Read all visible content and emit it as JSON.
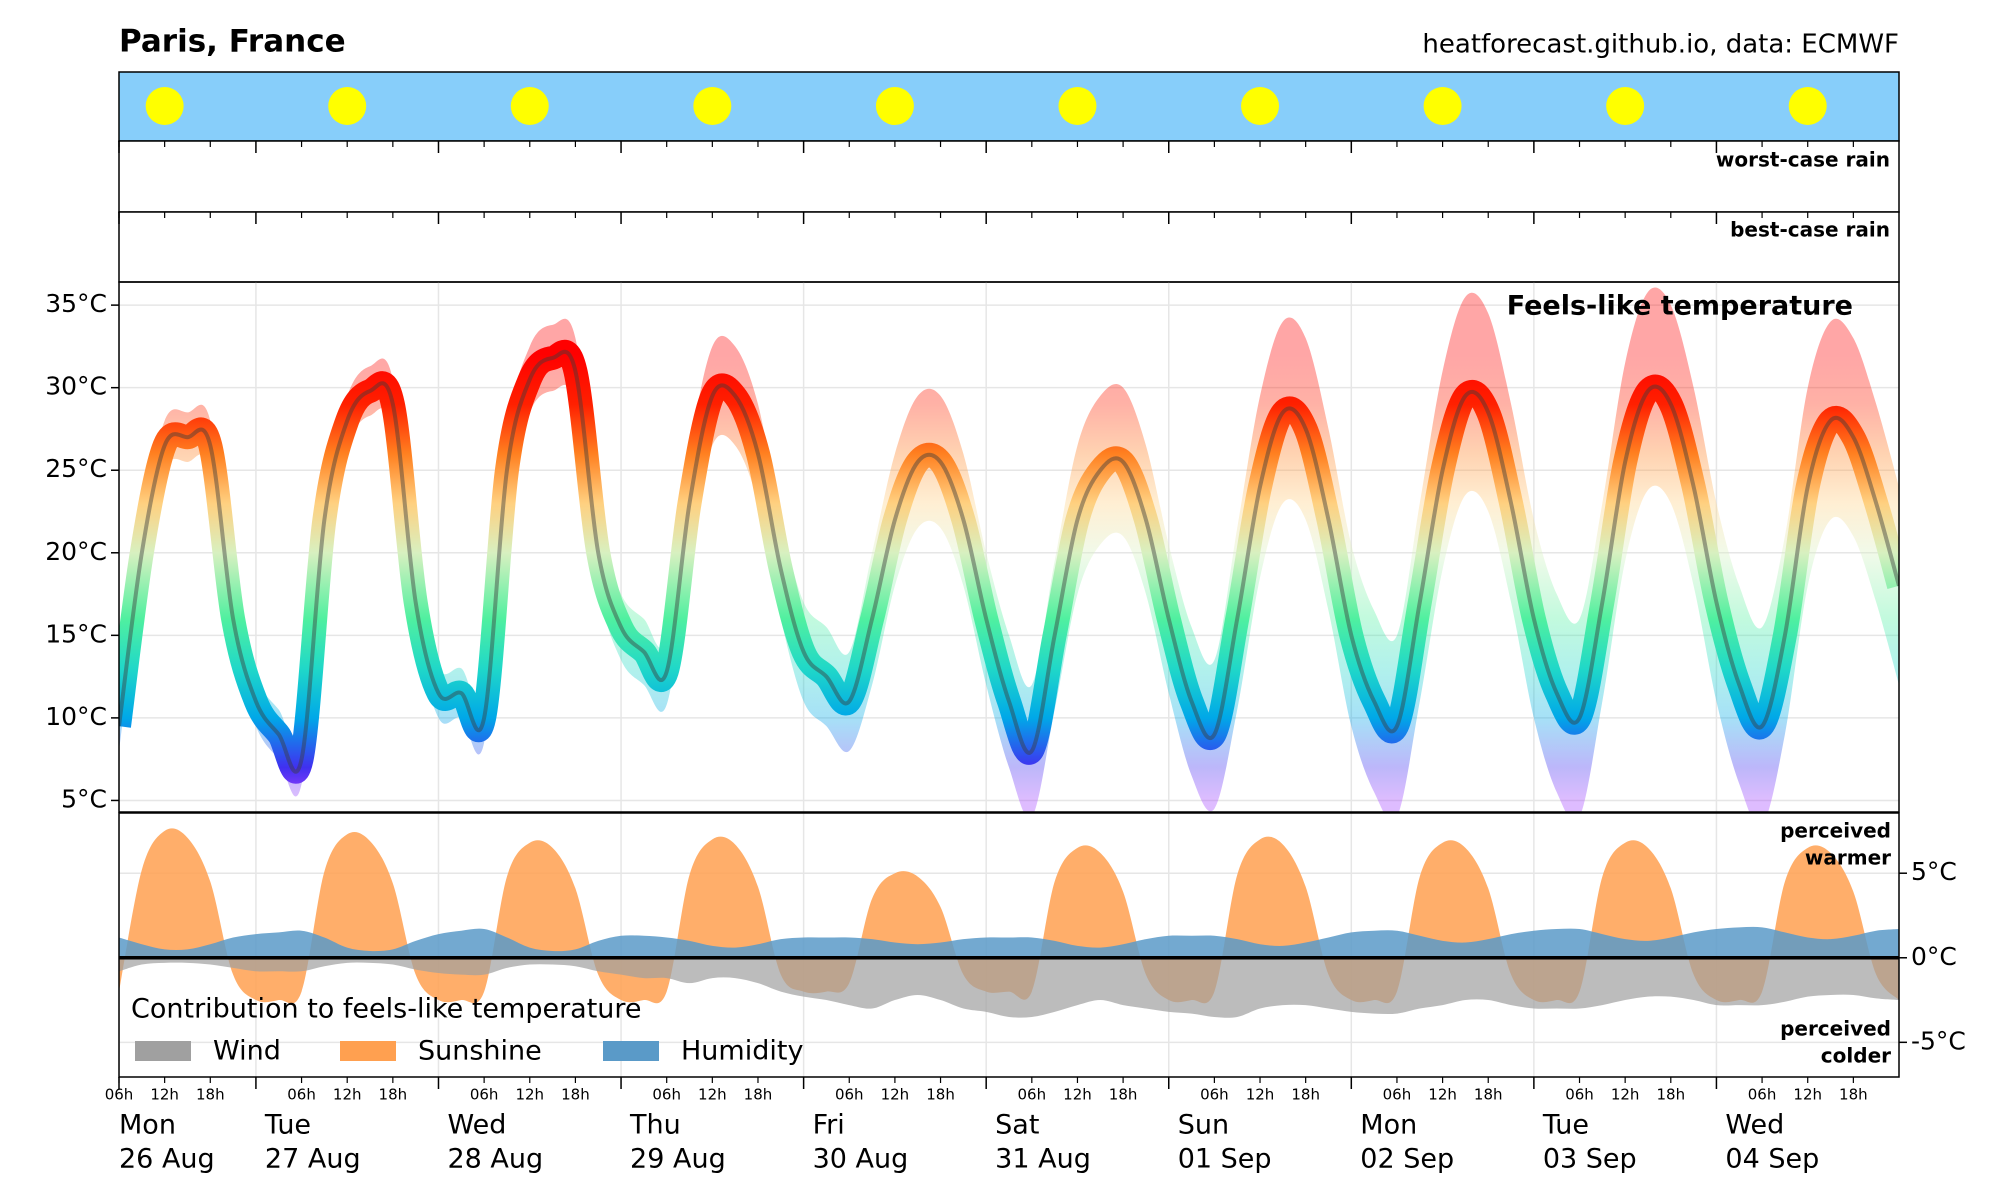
{
  "chart_data": [
    {
      "type": "line",
      "title": "Paris, France",
      "subtitle": "heatforecast.github.io, data: ECMWF",
      "annotation": "Feels-like temperature",
      "rain_labels": [
        "worst-case rain",
        "best-case rain"
      ],
      "x": [
        6,
        9,
        12,
        15,
        18,
        21,
        24,
        27,
        30,
        33,
        36,
        39,
        42,
        45,
        48,
        51,
        54,
        57,
        60,
        63,
        66,
        69,
        72,
        75,
        78,
        81,
        84,
        87,
        90,
        93,
        96,
        99,
        102,
        105,
        108,
        111,
        114,
        117,
        120,
        123,
        126,
        129,
        132,
        135,
        138,
        141,
        144,
        147,
        150,
        153,
        156,
        159,
        162,
        165,
        168,
        171,
        174,
        177,
        180,
        183,
        186,
        189,
        192,
        195,
        198,
        201,
        204,
        207,
        210,
        213,
        216,
        219,
        222,
        225,
        228,
        231,
        234,
        237,
        240
      ],
      "values": [
        9.5,
        20,
        26.5,
        27,
        26.5,
        16,
        11,
        9,
        7.5,
        22,
        28,
        29.8,
        29,
        17,
        11.5,
        11.5,
        10,
        25,
        30.5,
        31.8,
        31,
        20,
        15.5,
        14,
        12.8,
        23,
        29.5,
        29.5,
        26,
        19,
        14,
        12.5,
        11,
        16,
        22,
        25.5,
        25.5,
        22,
        16,
        11,
        8,
        15,
        22,
        25,
        25.5,
        22,
        16,
        11,
        9,
        16,
        24,
        28.5,
        27.5,
        22,
        15,
        11,
        9.5,
        17,
        25,
        29.5,
        28.5,
        23,
        16,
        11.5,
        10,
        17,
        25.5,
        29.8,
        29,
        24,
        17,
        12,
        9.5,
        15,
        24,
        28,
        27,
        23,
        18
      ],
      "lower": [
        8,
        18.5,
        25,
        25.5,
        25,
        14.5,
        9.5,
        7.5,
        6,
        20.5,
        26.5,
        28.3,
        27.5,
        15.5,
        10,
        10,
        8.5,
        23,
        28.5,
        29.8,
        29,
        18,
        13.5,
        12,
        10.8,
        20,
        26.5,
        26.5,
        23,
        16,
        11,
        9.5,
        8,
        12,
        18,
        21.5,
        21.5,
        18,
        12,
        7,
        4,
        10.5,
        17.5,
        20.5,
        21,
        17.5,
        11.5,
        6.5,
        4.5,
        10.5,
        18.5,
        23,
        22,
        16.5,
        9.5,
        5.5,
        4,
        11,
        19,
        23.5,
        22.5,
        17,
        10,
        5.5,
        4,
        11,
        19.5,
        23.8,
        23,
        18,
        11,
        6,
        3.5,
        9,
        18,
        22,
        21,
        17,
        12
      ],
      "upper": [
        11,
        21.5,
        28,
        28.5,
        28,
        17.5,
        12.5,
        10.5,
        9,
        23.5,
        29.5,
        31.3,
        30.5,
        18.5,
        13,
        13,
        11.5,
        27,
        32.5,
        33.8,
        33,
        22,
        17.5,
        16,
        14.8,
        26,
        32.5,
        32.5,
        29,
        22,
        17,
        15.5,
        14,
        20,
        26,
        29.5,
        29.5,
        26,
        20,
        15,
        12,
        19.5,
        26.5,
        29.5,
        30,
        26.5,
        20.5,
        15.5,
        13.5,
        21.5,
        29.5,
        34,
        33,
        27.5,
        20.5,
        16.5,
        15,
        23,
        31,
        35.5,
        34.5,
        29,
        22,
        17.5,
        16,
        23,
        31.5,
        35.8,
        35,
        30,
        23,
        18,
        15.5,
        21,
        30,
        34,
        33,
        29,
        24
      ],
      "colorscale": [
        {
          "value": 5,
          "color": "#a040ff"
        },
        {
          "value": 7,
          "color": "#4030f0"
        },
        {
          "value": 10,
          "color": "#00a8e8"
        },
        {
          "value": 13,
          "color": "#20d8c8"
        },
        {
          "value": 16,
          "color": "#50f0a0"
        },
        {
          "value": 20,
          "color": "#d8f0c0"
        },
        {
          "value": 23,
          "color": "#ffd080"
        },
        {
          "value": 26,
          "color": "#ff8020"
        },
        {
          "value": 29,
          "color": "#ff2000"
        },
        {
          "value": 32,
          "color": "#ff0000"
        }
      ],
      "xlim": [
        6,
        240
      ],
      "ylim": [
        4.3,
        36.4
      ],
      "yticks": [
        {
          "value": 5,
          "label": "5°C"
        },
        {
          "value": 10,
          "label": "10°C"
        },
        {
          "value": 15,
          "label": "15°C"
        },
        {
          "value": 20,
          "label": "20°C"
        },
        {
          "value": 25,
          "label": "25°C"
        },
        {
          "value": 30,
          "label": "30°C"
        },
        {
          "value": 35,
          "label": "35°C"
        }
      ],
      "xticks": [
        {
          "value": 6,
          "label": "Mon"
        },
        {
          "value": 24,
          "label": "Tue"
        },
        {
          "value": 48,
          "label": "Wed"
        },
        {
          "value": 72,
          "label": "Thu"
        },
        {
          "value": 96,
          "label": "Fri"
        },
        {
          "value": 120,
          "label": "Sat"
        },
        {
          "value": 144,
          "label": "Sun"
        },
        {
          "value": 168,
          "label": "Mon"
        },
        {
          "value": 192,
          "label": "Tue"
        },
        {
          "value": 216,
          "label": "Wed"
        }
      ],
      "xtick_dates": [
        "26 Aug",
        "27 Aug",
        "28 Aug",
        "29 Aug",
        "30 Aug",
        "31 Aug",
        "01 Sep",
        "02 Sep",
        "03 Sep",
        "04 Sep"
      ],
      "hour_ticks": [
        {
          "value": 6,
          "label": "06h"
        },
        {
          "value": 12,
          "label": "12h"
        },
        {
          "value": 18,
          "label": "18h"
        },
        {
          "value": 30,
          "label": "06h"
        },
        {
          "value": 36,
          "label": "12h"
        },
        {
          "value": 42,
          "label": "18h"
        },
        {
          "value": 54,
          "label": "06h"
        },
        {
          "value": 60,
          "label": "12h"
        },
        {
          "value": 66,
          "label": "18h"
        },
        {
          "value": 78,
          "label": "06h"
        },
        {
          "value": 84,
          "label": "12h"
        },
        {
          "value": 90,
          "label": "18h"
        },
        {
          "value": 102,
          "label": "06h"
        },
        {
          "value": 108,
          "label": "12h"
        },
        {
          "value": 114,
          "label": "18h"
        },
        {
          "value": 126,
          "label": "06h"
        },
        {
          "value": 132,
          "label": "12h"
        },
        {
          "value": 138,
          "label": "18h"
        },
        {
          "value": 150,
          "label": "06h"
        },
        {
          "value": 156,
          "label": "12h"
        },
        {
          "value": 162,
          "label": "18h"
        },
        {
          "value": 174,
          "label": "06h"
        },
        {
          "value": 180,
          "label": "12h"
        },
        {
          "value": 186,
          "label": "18h"
        },
        {
          "value": 198,
          "label": "06h"
        },
        {
          "value": 204,
          "label": "12h"
        },
        {
          "value": 210,
          "label": "18h"
        },
        {
          "value": 222,
          "label": "06h"
        },
        {
          "value": 228,
          "label": "12h"
        },
        {
          "value": 234,
          "label": "18h"
        }
      ],
      "grid": true
    },
    {
      "type": "area",
      "legend_title": "Contribution to feels-like temperature",
      "warm_label": [
        "perceived",
        "warmer"
      ],
      "cold_label": [
        "perceived",
        "colder"
      ],
      "x": [
        6,
        9,
        12,
        15,
        18,
        21,
        24,
        27,
        30,
        33,
        36,
        39,
        42,
        45,
        48,
        51,
        54,
        57,
        60,
        63,
        66,
        69,
        72,
        75,
        78,
        81,
        84,
        87,
        90,
        93,
        96,
        99,
        102,
        105,
        108,
        111,
        114,
        117,
        120,
        123,
        126,
        129,
        132,
        135,
        138,
        141,
        144,
        147,
        150,
        153,
        156,
        159,
        162,
        165,
        168,
        171,
        174,
        177,
        180,
        183,
        186,
        189,
        192,
        195,
        198,
        201,
        204,
        207,
        210,
        213,
        216,
        219,
        222,
        225,
        228,
        231,
        234,
        237,
        240
      ],
      "series": [
        {
          "name": "Wind",
          "color": "#a0a0a0",
          "values": [
            -0.8,
            -0.4,
            -0.3,
            -0.3,
            -0.4,
            -0.6,
            -0.8,
            -0.8,
            -0.8,
            -0.5,
            -0.3,
            -0.3,
            -0.4,
            -0.7,
            -0.9,
            -1,
            -1,
            -0.6,
            -0.4,
            -0.4,
            -0.5,
            -0.8,
            -1,
            -1.2,
            -1.2,
            -1.5,
            -1.2,
            -1.2,
            -1.5,
            -2,
            -2.3,
            -2.5,
            -2.8,
            -3,
            -2.5,
            -2.2,
            -2.5,
            -3,
            -3.2,
            -3.5,
            -3.5,
            -3.2,
            -2.8,
            -2.5,
            -2.8,
            -3,
            -3.2,
            -3.3,
            -3.5,
            -3.5,
            -3,
            -2.8,
            -2.8,
            -3,
            -3.2,
            -3.3,
            -3.3,
            -3,
            -2.8,
            -2.5,
            -2.5,
            -2.8,
            -3,
            -3,
            -3,
            -2.8,
            -2.5,
            -2.3,
            -2.3,
            -2.5,
            -2.8,
            -2.8,
            -2.8,
            -2.6,
            -2.3,
            -2.2,
            -2.2,
            -2.4,
            -2.5
          ]
        },
        {
          "name": "Sunshine",
          "color": "#ffa050",
          "values": [
            -2,
            5.2,
            7.5,
            7.1,
            4.5,
            -1,
            -2.5,
            -2.5,
            -2,
            5.1,
            7.3,
            6.9,
            4.4,
            -1,
            -2.5,
            -2.5,
            -2,
            4.8,
            6.8,
            6.5,
            4.1,
            -1,
            -2.5,
            -2.5,
            -2,
            4.9,
            7,
            6.7,
            4.2,
            -1,
            -2,
            -2,
            -1.5,
            3.5,
            5,
            4.8,
            3,
            -1,
            -2,
            -2,
            -2,
            4.5,
            6.5,
            6.2,
            3.9,
            -1,
            -2.5,
            -2.5,
            -2,
            4.9,
            7,
            6.7,
            4.2,
            -1,
            -2.5,
            -2.5,
            -2,
            4.8,
            6.8,
            6.5,
            4.1,
            -1,
            -2.5,
            -2.5,
            -2,
            4.8,
            6.8,
            6.5,
            4.1,
            -1,
            -2.5,
            -2.5,
            -2,
            4.5,
            6.5,
            6.2,
            3.9,
            -1,
            -2.5
          ]
        },
        {
          "name": "Humidity",
          "color": "#5a9ac8",
          "values": [
            1.2,
            0.8,
            0.5,
            0.5,
            0.8,
            1.2,
            1.4,
            1.5,
            1.6,
            1.2,
            0.6,
            0.4,
            0.5,
            1,
            1.4,
            1.6,
            1.7,
            1.2,
            0.6,
            0.4,
            0.5,
            1,
            1.3,
            1.3,
            1.2,
            1,
            0.7,
            0.6,
            0.8,
            1.1,
            1.2,
            1.2,
            1.2,
            1.1,
            0.9,
            0.8,
            0.9,
            1.1,
            1.2,
            1.2,
            1.2,
            1,
            0.7,
            0.6,
            0.8,
            1.1,
            1.3,
            1.3,
            1.3,
            1.1,
            0.8,
            0.7,
            0.9,
            1.2,
            1.5,
            1.6,
            1.6,
            1.3,
            1,
            0.9,
            1.1,
            1.4,
            1.6,
            1.7,
            1.7,
            1.4,
            1.1,
            1,
            1.2,
            1.5,
            1.7,
            1.8,
            1.8,
            1.5,
            1.2,
            1.1,
            1.3,
            1.6,
            1.7
          ]
        }
      ],
      "xlim": [
        6,
        240
      ],
      "ylim": [
        -7.05,
        8.56
      ],
      "yticks": [
        {
          "value": -5,
          "label": "-5°C"
        },
        {
          "value": 0,
          "label": "0°C"
        },
        {
          "value": 5,
          "label": "5°C"
        }
      ],
      "grid": true
    }
  ]
}
